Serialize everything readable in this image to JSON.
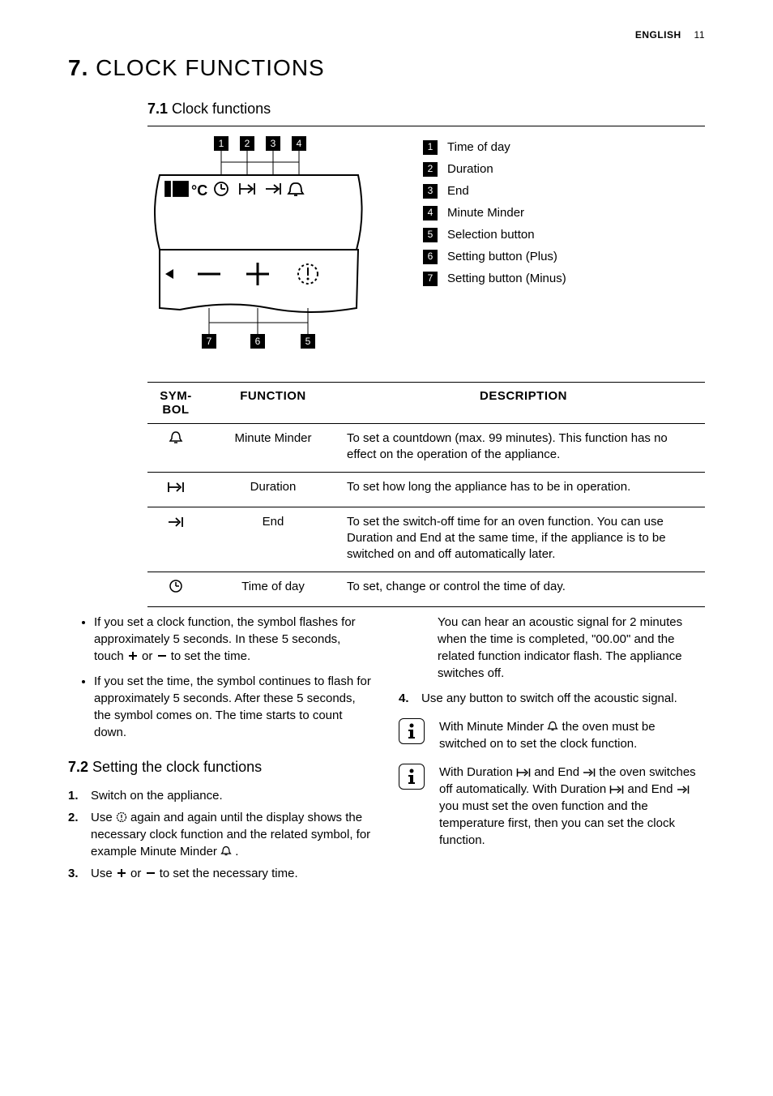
{
  "header": {
    "lang": "ENGLISH",
    "page": "11"
  },
  "section": {
    "num": "7.",
    "title": "CLOCK FUNCTIONS"
  },
  "sub1": {
    "num": "7.1",
    "title": "Clock functions"
  },
  "legend": [
    {
      "n": "1",
      "label": "Time of day"
    },
    {
      "n": "2",
      "label": "Duration"
    },
    {
      "n": "3",
      "label": "End"
    },
    {
      "n": "4",
      "label": "Minute Minder"
    },
    {
      "n": "5",
      "label": "Selection button"
    },
    {
      "n": "6",
      "label": "Setting button (Plus)"
    },
    {
      "n": "7",
      "label": "Setting button (Minus)"
    }
  ],
  "table": {
    "headers": {
      "sym": "SYM-\nBOL",
      "fn": "FUNCTION",
      "desc": "DESCRIPTION"
    },
    "rows": [
      {
        "sym": "bell",
        "fn": "Minute Minder",
        "desc": "To set a countdown (max. 99 minutes). This function has no effect on the operation of the appliance."
      },
      {
        "sym": "duration",
        "fn": "Duration",
        "desc": "To set how long the appliance has to be in operation."
      },
      {
        "sym": "end",
        "fn": "End",
        "desc": "To set the switch-off time for an oven function. You can use Duration and End at the same time, if the appliance is to be switched on and off automatically later."
      },
      {
        "sym": "clock",
        "fn": "Time of day",
        "desc": "To set, change or control the time of day."
      }
    ]
  },
  "bullets": [
    "If you set a clock function, the symbol flashes for approximately 5 seconds. In these 5 seconds, touch [+] or [−] to set the time.",
    "If you set the time, the symbol continues to flash for approximately 5 seconds. After these 5 seconds, the symbol comes on. The time starts to count down."
  ],
  "sub2": {
    "num": "7.2",
    "title": "Setting the clock functions"
  },
  "steps": [
    {
      "n": "1.",
      "body": "Switch on the appliance."
    },
    {
      "n": "2.",
      "body": "Use [clock] again and again until the display shows the necessary clock function and the related symbol, for example Minute Minder [bell] ."
    },
    {
      "n": "3.",
      "body": "Use [+] or [−] to set the necessary time."
    }
  ],
  "right_top": "You can hear an acoustic signal for 2 minutes when the time is completed, \"00.00\" and the related function indicator flash. The appliance switches off.",
  "step4": {
    "n": "4.",
    "body": "Use any button to switch off the acoustic signal."
  },
  "info1": "With Minute Minder [bell] the oven must be switched on to set the clock function.",
  "info2": "With Duration [duration] and End [end] the oven switches off automatically. With Duration [duration] and End [end] you must set the oven function and the temperature first, then you can set the clock function.",
  "colors": {
    "badge_bg": "#000000",
    "badge_fg": "#ffffff"
  }
}
